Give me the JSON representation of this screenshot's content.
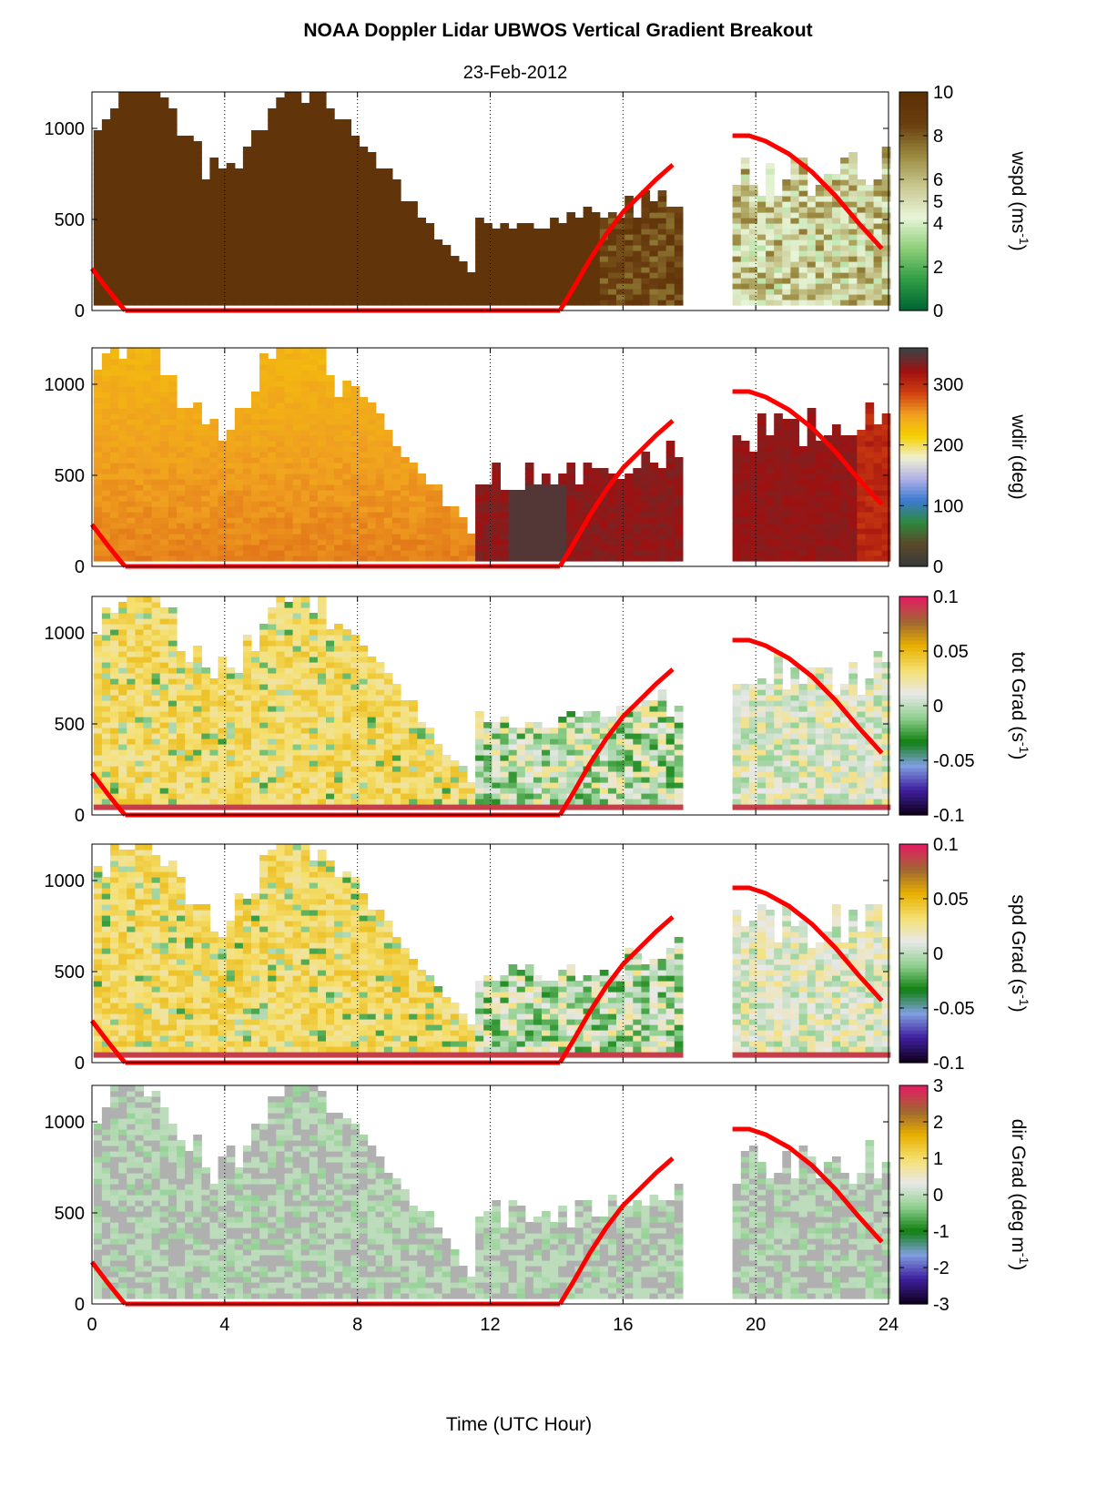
{
  "title": "NOAA Doppler Lidar  UBWOS  Vertical Gradient Breakout",
  "subtitle": "23-Feb-2012",
  "chart_data": [
    {
      "type": "heatmap",
      "quantity": "wspd",
      "ylabel": "wspd (ms",
      "ylabel_sup": "-1",
      "ylabel_tail": ")",
      "ylim": [
        0,
        1200
      ],
      "yticks": [
        "0",
        "500",
        "1000"
      ],
      "xlim": [
        0,
        24
      ],
      "clim": [
        0,
        10
      ],
      "cbar_ticks": [
        "0",
        "2",
        "4",
        "5",
        "6",
        "8",
        "10"
      ],
      "cbar_tick_values": [
        0,
        2,
        4,
        5,
        6,
        8,
        10
      ],
      "colormap": [
        "#006633",
        "#33a045",
        "#8fcf7a",
        "#e8f5d8",
        "#c8c890",
        "#9a8a40",
        "#6b3f10",
        "#5c3005"
      ]
    },
    {
      "type": "heatmap",
      "quantity": "wdir",
      "ylabel": "wdir (deg)",
      "ylabel_sup": "",
      "ylabel_tail": "",
      "ylim": [
        0,
        1200
      ],
      "yticks": [
        "0",
        "500",
        "1000"
      ],
      "xlim": [
        0,
        24
      ],
      "clim": [
        0,
        360
      ],
      "cbar_ticks": [
        "0",
        "100",
        "200",
        "300"
      ],
      "cbar_tick_values": [
        0,
        100,
        200,
        300
      ],
      "colormap": [
        "#3a3a3a",
        "#5a4a2a",
        "#2e8a3e",
        "#3a7ad0",
        "#b0b0e8",
        "#f0f0d0",
        "#f5d000",
        "#f0a020",
        "#d04010",
        "#a01010",
        "#404040"
      ]
    },
    {
      "type": "heatmap",
      "quantity": "tot Grad",
      "ylabel": "tot Grad (s",
      "ylabel_sup": "-1",
      "ylabel_tail": ")",
      "ylim": [
        0,
        1200
      ],
      "yticks": [
        "0",
        "500",
        "1000"
      ],
      "xlim": [
        0,
        24
      ],
      "clim": [
        -0.1,
        0.1
      ],
      "cbar_ticks": [
        "-0.1",
        "-0.05",
        "0",
        "0.05",
        "0.1"
      ],
      "cbar_tick_values": [
        -0.1,
        -0.05,
        0,
        0.05,
        0.1
      ],
      "colormap": [
        "#100020",
        "#4020a0",
        "#80a0e0",
        "#108010",
        "#90d090",
        "#e8e8e8",
        "#f5e070",
        "#e8b000",
        "#a06830",
        "#e02060"
      ]
    },
    {
      "type": "heatmap",
      "quantity": "spd Grad",
      "ylabel": "spd Grad (s",
      "ylabel_sup": "-1",
      "ylabel_tail": ")",
      "ylim": [
        0,
        1200
      ],
      "yticks": [
        "0",
        "500",
        "1000"
      ],
      "xlim": [
        0,
        24
      ],
      "clim": [
        -0.1,
        0.1
      ],
      "cbar_ticks": [
        "-0.1",
        "-0.05",
        "0",
        "0.05",
        "0.1"
      ],
      "cbar_tick_values": [
        -0.1,
        -0.05,
        0,
        0.05,
        0.1
      ],
      "colormap": [
        "#100020",
        "#4020a0",
        "#80a0e0",
        "#108010",
        "#90d090",
        "#e8e8e8",
        "#f5e070",
        "#e8b000",
        "#a06830",
        "#e02060"
      ]
    },
    {
      "type": "heatmap",
      "quantity": "dir Grad",
      "ylabel": "dir Grad (deg m",
      "ylabel_sup": "-1",
      "ylabel_tail": ")",
      "ylim": [
        0,
        1200
      ],
      "yticks": [
        "0",
        "500",
        "1000"
      ],
      "xlim": [
        0,
        24
      ],
      "clim": [
        -3,
        3
      ],
      "cbar_ticks": [
        "-3",
        "-2",
        "-1",
        "0",
        "1",
        "2",
        "3"
      ],
      "cbar_tick_values": [
        -3,
        -2,
        -1,
        0,
        1,
        2,
        3
      ],
      "colormap": [
        "#100020",
        "#4020a0",
        "#80a0e0",
        "#108010",
        "#90d090",
        "#e8e8e8",
        "#f5e070",
        "#e8b000",
        "#a06830",
        "#e02060"
      ]
    }
  ],
  "xaxis": {
    "label": "Time (UTC Hour)",
    "ticks": [
      "0",
      "4",
      "8",
      "12",
      "16",
      "20",
      "24"
    ],
    "tick_values": [
      0,
      4,
      8,
      12,
      16,
      20,
      24
    ],
    "gridlines_dotted": [
      4,
      8,
      12,
      16,
      20
    ]
  },
  "data_gap_hours": [
    17.7,
    19.2
  ],
  "red_overlay_curve": {
    "color": "#ff0000",
    "segments": [
      {
        "x": [
          0,
          0.5,
          0.9,
          1.0
        ],
        "y": [
          230,
          110,
          20,
          0
        ]
      },
      {
        "x": [
          1.0,
          14.1
        ],
        "y": [
          0,
          0
        ]
      },
      {
        "x": [
          14.1,
          14.5,
          15.0,
          15.5,
          16.0,
          16.5,
          17.0,
          17.5
        ],
        "y": [
          0,
          120,
          280,
          420,
          540,
          630,
          720,
          800
        ]
      },
      {
        "x": [
          19.3,
          19.8,
          20.3,
          21.0,
          21.7,
          22.4,
          23.1,
          23.8
        ],
        "y": [
          960,
          960,
          930,
          860,
          760,
          630,
          480,
          340
        ]
      }
    ]
  }
}
